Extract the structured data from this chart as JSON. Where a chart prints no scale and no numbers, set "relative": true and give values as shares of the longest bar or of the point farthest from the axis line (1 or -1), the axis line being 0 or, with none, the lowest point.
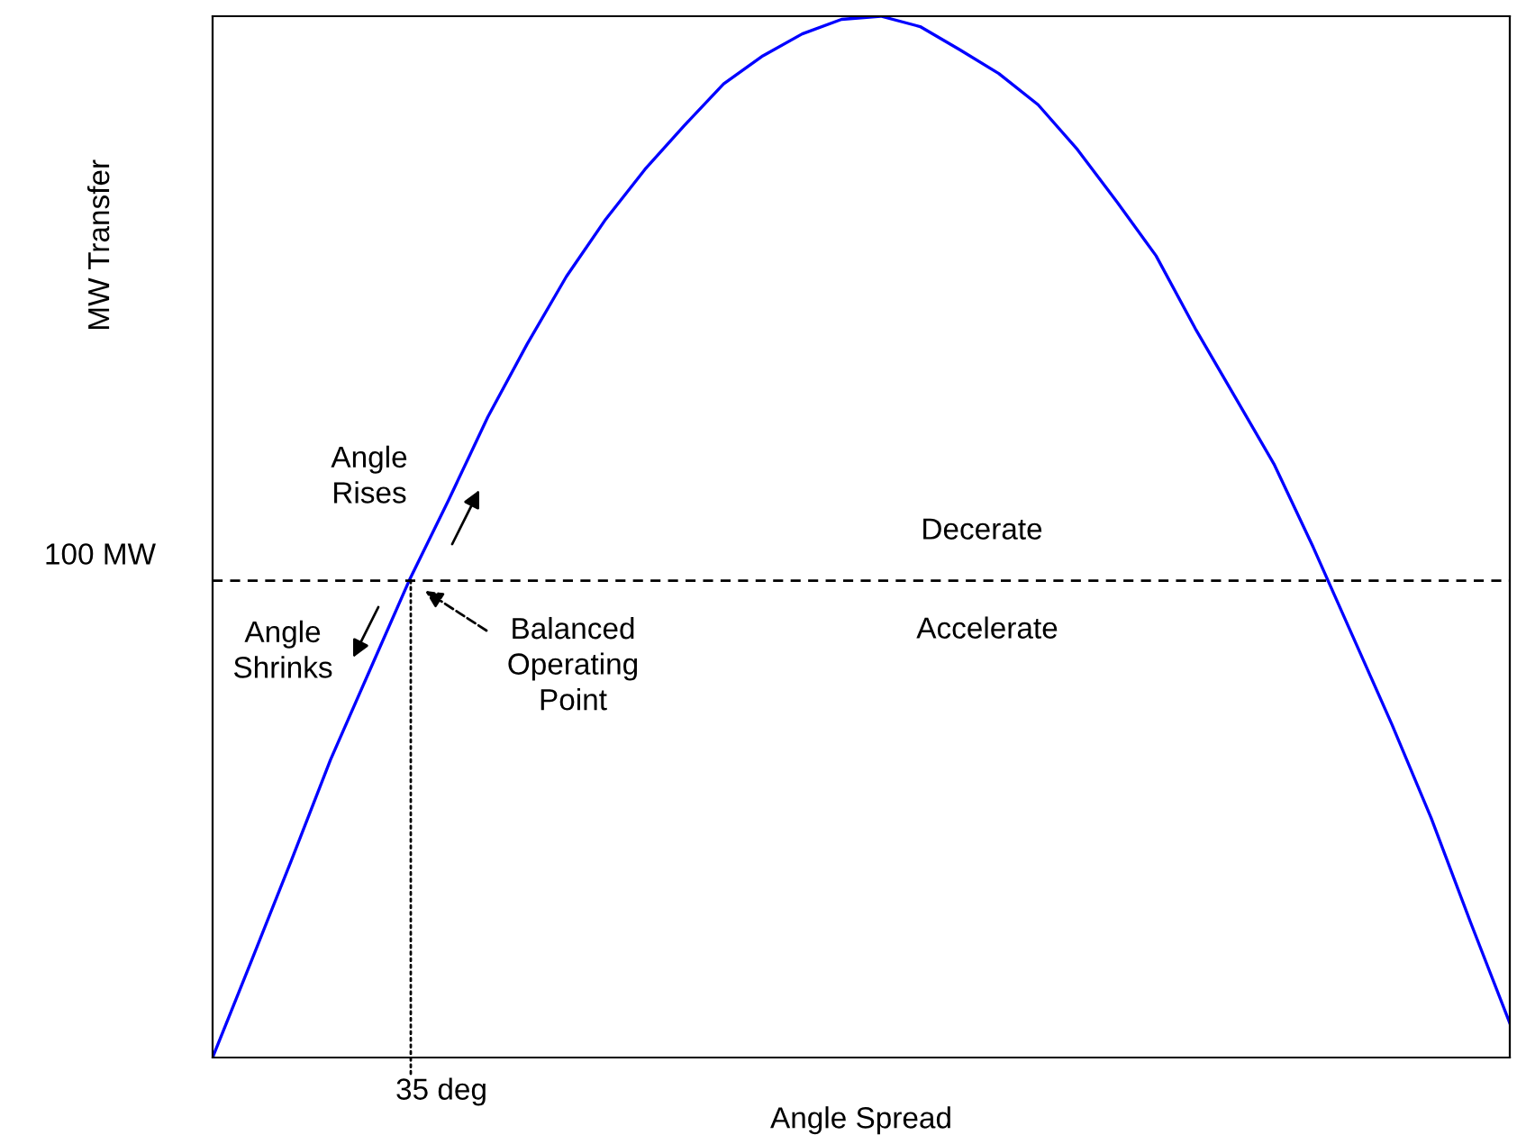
{
  "chart_data": {
    "type": "line",
    "relative": true,
    "xlabel": "Angle Spread",
    "ylabel": "MW Transfer",
    "categories": [
      null,
      null,
      null,
      null,
      null,
      null,
      null,
      null,
      null,
      null,
      null,
      null,
      null,
      null,
      null,
      null,
      null,
      null,
      null,
      null,
      null,
      null,
      null,
      null,
      null,
      null,
      null,
      null,
      null,
      null,
      null,
      null,
      null,
      null
    ],
    "series": [
      {
        "color": "#0000ff",
        "values": [
          0,
          0.094,
          0.189,
          0.286,
          0.372,
          0.458,
          0.535,
          0.615,
          0.685,
          0.75,
          0.805,
          0.853,
          0.895,
          0.935,
          0.962,
          0.983,
          0.997,
          1,
          0.99,
          0.968,
          0.945,
          0.915,
          0.872,
          0.822,
          0.77,
          0.7,
          0.635,
          0.57,
          0.49,
          0.405,
          0.32,
          0.23,
          0.13,
          0.033
        ]
      }
    ],
    "ref_lines": [
      {
        "axis": "y",
        "value": 0.458,
        "label": "100 MW",
        "color": "#000000",
        "line_style": "dashed"
      }
    ],
    "annotations": [
      "Angle Rises",
      "Angle Shrinks",
      "Balanced Operating Point",
      "Decerate",
      "Accelerate",
      "35 deg"
    ],
    "grid": false,
    "legend": false,
    "marker": "none",
    "line_style": "solid"
  }
}
